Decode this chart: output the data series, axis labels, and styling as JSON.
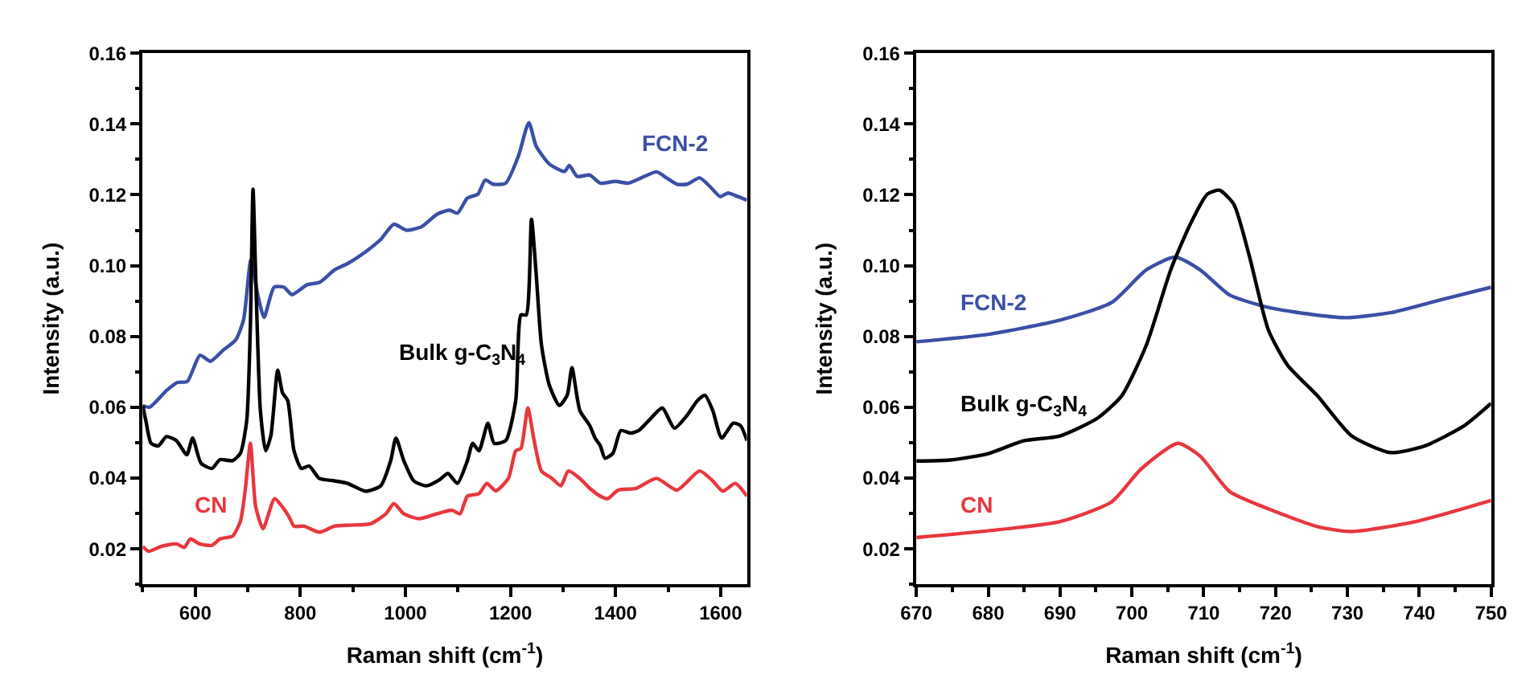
{
  "chart_data": [
    {
      "type": "line",
      "xlabel": "Raman shift (cm$^{-1}$)",
      "ylabel": "Intensity (a.u.)",
      "legend": false,
      "xlim": [
        500,
        1650
      ],
      "xticks": [
        {
          "value": 500,
          "label": null
        },
        600,
        {
          "value": 700,
          "label": null
        },
        800,
        {
          "value": 900,
          "label": null
        },
        1000,
        {
          "value": 1100,
          "label": null
        },
        1200,
        {
          "value": 1300,
          "label": null
        },
        1400,
        {
          "value": 1500,
          "label": null
        },
        1600
      ],
      "ylim": [
        0.01,
        0.16
      ],
      "yticks": [
        {
          "value": 0.01,
          "label": null
        },
        0.02,
        {
          "value": 0.03,
          "label": null
        },
        0.04,
        {
          "value": 0.05,
          "label": null
        },
        0.06,
        {
          "value": 0.07,
          "label": null
        },
        0.08,
        {
          "value": 0.09,
          "label": null
        },
        {
          "value": 0.1,
          "label": "0.10"
        },
        {
          "value": 0.11,
          "label": null
        },
        0.12,
        {
          "value": 0.13,
          "label": null
        },
        0.14,
        {
          "value": 0.15,
          "label": null
        },
        0.16
      ],
      "series": [
        {
          "name": "FCN-2",
          "color": "#3a4fa6",
          "x": [
            500,
            513,
            546,
            566,
            585,
            609,
            629,
            653,
            677,
            692,
            706,
            719,
            731,
            750,
            769,
            784,
            813,
            837,
            866,
            890,
            924,
            953,
            978,
            1002,
            1031,
            1060,
            1084,
            1099,
            1118,
            1138,
            1152,
            1167,
            1191,
            1215,
            1235,
            1249,
            1274,
            1303,
            1312,
            1327,
            1351,
            1371,
            1400,
            1424,
            1449,
            1478,
            1497,
            1517,
            1536,
            1560,
            1580,
            1599,
            1614,
            1633,
            1650
          ],
          "values": [
            0.0605,
            0.06,
            0.0648,
            0.067,
            0.0673,
            0.0747,
            0.073,
            0.0761,
            0.079,
            0.0847,
            0.1017,
            0.0918,
            0.0854,
            0.0939,
            0.0939,
            0.0918,
            0.0946,
            0.0953,
            0.0989,
            0.1006,
            0.1039,
            0.1074,
            0.1117,
            0.11,
            0.111,
            0.1145,
            0.1157,
            0.1148,
            0.1191,
            0.1202,
            0.1242,
            0.123,
            0.1233,
            0.1309,
            0.1404,
            0.1337,
            0.1287,
            0.1266,
            0.1283,
            0.1252,
            0.1256,
            0.1233,
            0.1238,
            0.1233,
            0.1248,
            0.1265,
            0.1248,
            0.123,
            0.123,
            0.1248,
            0.1223,
            0.1195,
            0.1205,
            0.1195,
            0.1185
          ]
        },
        {
          "name": "Bulk g-C$_{3}$N$_{4}$",
          "color": "#000000",
          "x": [
            500,
            506,
            516,
            530,
            545,
            564,
            584,
            595,
            611,
            632,
            647,
            671,
            686,
            698,
            705,
            710,
            715,
            724,
            734,
            744,
            757,
            766,
            776,
            788,
            802,
            817,
            836,
            865,
            890,
            924,
            953,
            972,
            982,
            997,
            1016,
            1040,
            1065,
            1081,
            1099,
            1118,
            1128,
            1140,
            1157,
            1169,
            1191,
            1210,
            1220,
            1230,
            1240,
            1249,
            1259,
            1274,
            1293,
            1308,
            1317,
            1332,
            1351,
            1361,
            1371,
            1380,
            1395,
            1410,
            1429,
            1444,
            1463,
            1489,
            1512,
            1536,
            1556,
            1570,
            1585,
            1602,
            1624,
            1638,
            1650
          ],
          "values": [
            0.0605,
            0.0562,
            0.0498,
            0.0491,
            0.0517,
            0.0506,
            0.0466,
            0.0513,
            0.0442,
            0.0427,
            0.0452,
            0.0449,
            0.047,
            0.0562,
            0.0833,
            0.1216,
            0.0975,
            0.0591,
            0.0477,
            0.052,
            0.0705,
            0.0641,
            0.0619,
            0.0477,
            0.0427,
            0.0434,
            0.0399,
            0.0392,
            0.0385,
            0.0363,
            0.0378,
            0.0449,
            0.0513,
            0.0449,
            0.0392,
            0.0378,
            0.0395,
            0.0413,
            0.0385,
            0.0449,
            0.0498,
            0.0477,
            0.0555,
            0.0498,
            0.0506,
            0.0619,
            0.0861,
            0.0861,
            0.1131,
            0.0975,
            0.0776,
            0.0662,
            0.0605,
            0.0634,
            0.0712,
            0.0591,
            0.0548,
            0.0513,
            0.0491,
            0.0456,
            0.047,
            0.0534,
            0.0527,
            0.0534,
            0.0562,
            0.0598,
            0.0541,
            0.0577,
            0.0619,
            0.0634,
            0.0591,
            0.0513,
            0.0555,
            0.0548,
            0.0506
          ]
        },
        {
          "name": "CN",
          "color": "#e8373d",
          "x": [
            500,
            511,
            535,
            564,
            579,
            591,
            608,
            632,
            647,
            671,
            686,
            695,
            705,
            715,
            729,
            751,
            768,
            778,
            788,
            807,
            836,
            865,
            895,
            934,
            963,
            978,
            997,
            1026,
            1060,
            1089,
            1104,
            1118,
            1140,
            1155,
            1172,
            1196,
            1210,
            1220,
            1233,
            1245,
            1259,
            1279,
            1296,
            1310,
            1332,
            1351,
            1371,
            1385,
            1405,
            1439,
            1478,
            1517,
            1560,
            1585,
            1604,
            1628,
            1650
          ],
          "values": [
            0.0207,
            0.0193,
            0.0207,
            0.0214,
            0.0204,
            0.0228,
            0.0214,
            0.021,
            0.0228,
            0.0236,
            0.0278,
            0.0364,
            0.0498,
            0.032,
            0.0257,
            0.0342,
            0.0314,
            0.0292,
            0.0264,
            0.0264,
            0.0247,
            0.0264,
            0.0267,
            0.0271,
            0.0299,
            0.0328,
            0.0299,
            0.0285,
            0.0299,
            0.0309,
            0.0299,
            0.0349,
            0.0356,
            0.0385,
            0.0364,
            0.0399,
            0.0477,
            0.0484,
            0.0598,
            0.0506,
            0.042,
            0.0399,
            0.0378,
            0.042,
            0.0399,
            0.0371,
            0.0349,
            0.0342,
            0.0366,
            0.0371,
            0.0399,
            0.0366,
            0.042,
            0.0392,
            0.0363,
            0.0385,
            0.0349
          ]
        }
      ]
    },
    {
      "type": "line",
      "xlabel": "Raman shift (cm$^{-1}$)",
      "ylabel": "Intensity (a.u.)",
      "legend": false,
      "xlim": [
        670,
        750
      ],
      "xticks": [
        670,
        {
          "value": 675,
          "label": null
        },
        680,
        {
          "value": 685,
          "label": null
        },
        690,
        {
          "value": 695,
          "label": null
        },
        700,
        {
          "value": 705,
          "label": null
        },
        710,
        {
          "value": 715,
          "label": null
        },
        720,
        {
          "value": 725,
          "label": null
        },
        730,
        {
          "value": 735,
          "label": null
        },
        740,
        {
          "value": 745,
          "label": null
        },
        750
      ],
      "ylim": [
        0.01,
        0.16
      ],
      "yticks": [
        {
          "value": 0.01,
          "label": null
        },
        0.02,
        {
          "value": 0.03,
          "label": null
        },
        0.04,
        {
          "value": 0.05,
          "label": null
        },
        0.06,
        {
          "value": 0.07,
          "label": null
        },
        0.08,
        {
          "value": 0.09,
          "label": null
        },
        {
          "value": 0.1,
          "label": "0.10"
        },
        {
          "value": 0.11,
          "label": null
        },
        0.12,
        {
          "value": 0.13,
          "label": null
        },
        0.14,
        {
          "value": 0.15,
          "label": null
        },
        0.16
      ],
      "series": [
        {
          "name": "FCN-2",
          "color": "#3a4fa6",
          "x": [
            670,
            680,
            690,
            697.2,
            702,
            706,
            709.5,
            713.6,
            719,
            725.8,
            729.9,
            736,
            742.9,
            750
          ],
          "values": [
            0.0785,
            0.0806,
            0.0846,
            0.0896,
            0.0988,
            0.1024,
            0.0988,
            0.0917,
            0.0882,
            0.086,
            0.0853,
            0.0867,
            0.0903,
            0.0939
          ]
        },
        {
          "name": "Bulk g-C$_{3}$N$_{4}$",
          "color": "#000000",
          "x": [
            670,
            674.7,
            680,
            684.9,
            690,
            695.2,
            698.6,
            702,
            705.4,
            708.1,
            710.5,
            712.2,
            714.2,
            716.3,
            719,
            721.7,
            725.8,
            730.6,
            736,
            740.8,
            746.2,
            750
          ],
          "values": [
            0.0448,
            0.0451,
            0.0469,
            0.0505,
            0.0519,
            0.0569,
            0.0633,
            0.0775,
            0.0988,
            0.1116,
            0.1202,
            0.1213,
            0.1173,
            0.1031,
            0.0818,
            0.0718,
            0.0633,
            0.0519,
            0.0472,
            0.0491,
            0.0547,
            0.0611
          ]
        },
        {
          "name": "CN",
          "color": "#e8373d",
          "x": [
            670,
            680,
            690,
            697.2,
            701.3,
            706.4,
            709.5,
            713.6,
            719,
            725.8,
            730.6,
            739.5,
            750
          ],
          "values": [
            0.0232,
            0.0251,
            0.0277,
            0.0333,
            0.0426,
            0.0498,
            0.0462,
            0.0362,
            0.0313,
            0.0263,
            0.0249,
            0.0277,
            0.0337
          ]
        }
      ]
    }
  ]
}
